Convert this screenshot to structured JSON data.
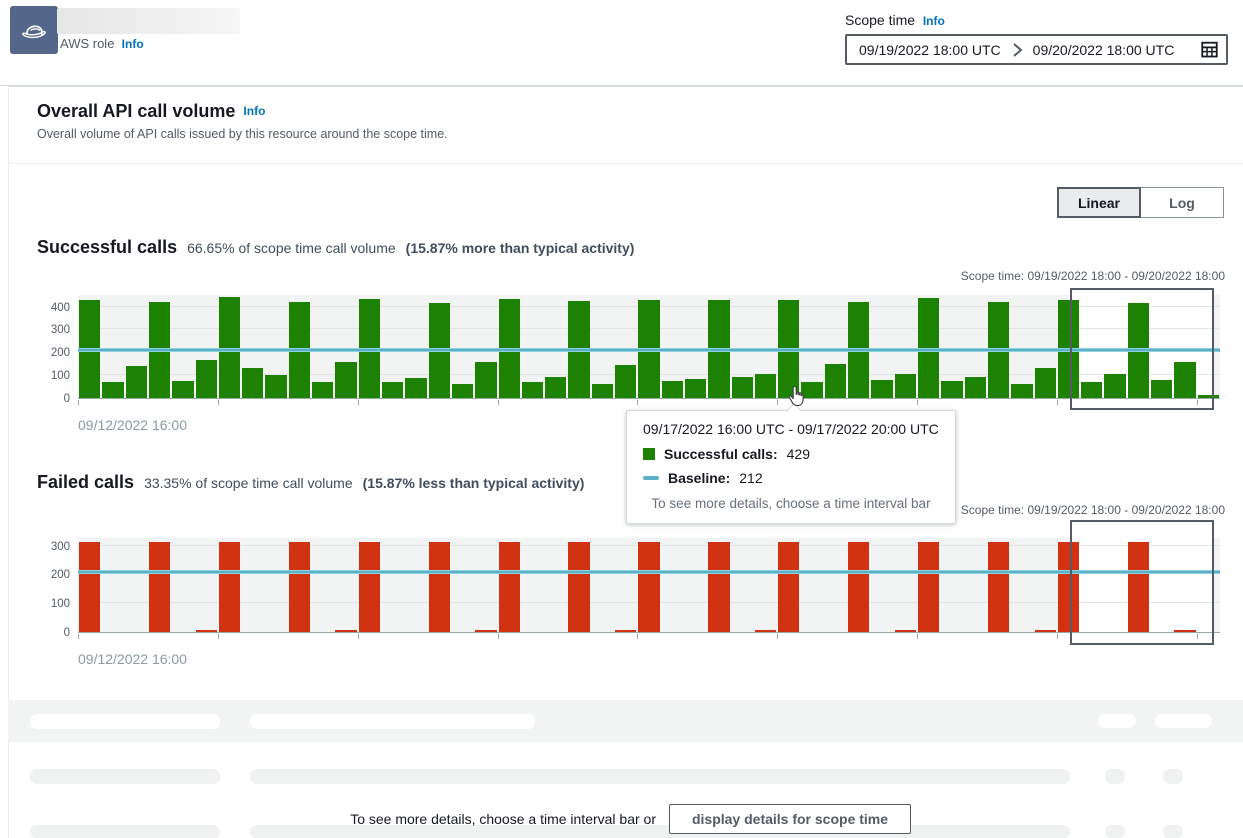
{
  "topbar": {
    "aws_role_label": "AWS role",
    "info_label": "Info",
    "scope_time": {
      "label": "Scope time",
      "info_label": "Info",
      "start": "09/19/2022 18:00 UTC",
      "end": "09/20/2022 18:00 UTC"
    }
  },
  "panel": {
    "title": "Overall API call volume",
    "info_label": "Info",
    "description": "Overall volume of API calls issued by this resource around the scope time.",
    "scale_toggle": {
      "linear_label": "Linear",
      "log_label": "Log",
      "selected": "Linear"
    }
  },
  "successful": {
    "heading": "Successful calls",
    "summary": "66.65% of scope time call volume",
    "comparison": "(15.87% more than typical activity)",
    "scope_caption": "Scope time: 09/19/2022 18:00 - 09/20/2022 18:00",
    "x_start_label": "09/12/2022 16:00"
  },
  "failed": {
    "heading": "Failed calls",
    "summary": "33.35% of scope time call volume",
    "comparison": "(15.87% less than typical activity)",
    "scope_caption": "Scope time: 09/19/2022 18:00 - 09/20/2022 18:00",
    "x_start_label": "09/12/2022 16:00"
  },
  "tooltip": {
    "title": "09/17/2022 16:00 UTC - 09/17/2022 20:00 UTC",
    "series_label": "Successful calls:",
    "series_value": "429",
    "baseline_label": "Baseline:",
    "baseline_value": "212",
    "footer": "To see more details, choose a time interval bar"
  },
  "footer_cta": {
    "text": "To see more details, choose a time interval bar or",
    "button_label": "display details for scope time"
  },
  "colors": {
    "successful_bar": "#1d8102",
    "failed_bar": "#d13212",
    "baseline_line": "#58b2c8",
    "link": "#0073bb",
    "scope_box_border": "#545b64"
  },
  "chart_data": [
    {
      "type": "bar",
      "title": "Successful calls",
      "bar_color": "#1d8102",
      "x_interval_hours": 4,
      "x_start_label": "09/12/2022 16:00",
      "yticks": [
        0,
        100,
        200,
        300,
        400
      ],
      "ylim": [
        0,
        455
      ],
      "baseline": 212,
      "hovered_bar": {
        "index": 30,
        "value": 429,
        "range": "09/17/2022 16:00 UTC - 09/17/2022 20:00 UTC"
      },
      "scope_window": {
        "start_index": 42.55,
        "end_index": 48.75,
        "label": "Scope time: 09/19/2022 18:00 - 09/20/2022 18:00"
      },
      "values": [
        430,
        72,
        140,
        421,
        74,
        167,
        440,
        132,
        100,
        419,
        72,
        157,
        434,
        72,
        89,
        417,
        60,
        159,
        432,
        71,
        91,
        424,
        62,
        144,
        431,
        74,
        85,
        428,
        94,
        104,
        429,
        70,
        149,
        421,
        79,
        104,
        436,
        74,
        90,
        418,
        61,
        130,
        429,
        72,
        103,
        416,
        79,
        158,
        15
      ]
    },
    {
      "type": "bar",
      "title": "Failed calls",
      "bar_color": "#d13212",
      "x_interval_hours": 4,
      "x_start_label": "09/12/2022 16:00",
      "yticks": [
        0,
        100,
        200,
        300
      ],
      "ylim": [
        0,
        330
      ],
      "baseline": 210,
      "scope_window": {
        "start_index": 42.55,
        "end_index": 48.75,
        "label": "Scope time: 09/19/2022 18:00 - 09/20/2022 18:00"
      },
      "values": [
        314,
        0,
        0,
        314,
        0,
        6,
        314,
        0,
        0,
        314,
        0,
        6,
        314,
        0,
        0,
        314,
        0,
        6,
        314,
        0,
        0,
        314,
        0,
        6,
        314,
        0,
        0,
        314,
        0,
        6,
        314,
        0,
        0,
        314,
        0,
        6,
        314,
        0,
        0,
        314,
        0,
        6,
        314,
        0,
        0,
        314,
        0,
        6,
        0
      ]
    }
  ]
}
